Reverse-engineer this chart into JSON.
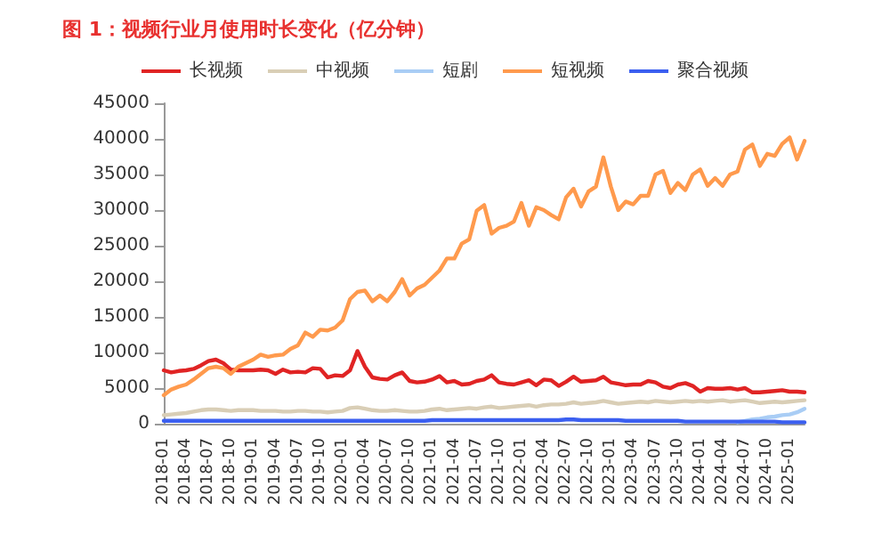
{
  "chart_data": {
    "type": "line",
    "title": "图 1：视频行业月使用时长变化（亿分钟）",
    "categories": [
      "2018-01",
      null,
      null,
      "2018-04",
      null,
      null,
      "2018-07",
      null,
      null,
      "2018-10",
      null,
      null,
      "2019-01",
      null,
      null,
      "2019-04",
      null,
      null,
      "2019-07",
      null,
      null,
      "2019-10",
      null,
      null,
      "2020-01",
      null,
      null,
      "2020-04",
      null,
      null,
      "2020-07",
      null,
      null,
      "2020-10",
      null,
      null,
      "2021-01",
      null,
      null,
      "2021-04",
      null,
      null,
      "2021-07",
      null,
      null,
      "2021-10",
      null,
      null,
      "2022-01",
      null,
      null,
      "2022-04",
      null,
      null,
      "2022-07",
      null,
      null,
      "2022-10",
      null,
      null,
      "2023-01",
      null,
      null,
      "2023-04",
      null,
      null,
      "2023-07",
      null,
      null,
      "2023-10",
      null,
      null,
      "2024-01",
      null,
      null,
      "2024-04",
      null,
      null,
      "2024-07",
      null,
      null,
      "2024-10",
      null,
      null,
      "2025-01",
      null,
      null
    ],
    "series": [
      {
        "name": "长视频",
        "color": "#e02424",
        "values": [
          7500,
          7200,
          7400,
          7500,
          7700,
          8200,
          8800,
          9000,
          8500,
          7600,
          7500,
          7500,
          7500,
          7600,
          7500,
          7000,
          7600,
          7200,
          7300,
          7200,
          7800,
          7700,
          6500,
          6800,
          6700,
          7500,
          10200,
          8000,
          6500,
          6300,
          6200,
          6800,
          7200,
          6000,
          5800,
          5900,
          6200,
          6700,
          5800,
          6000,
          5500,
          5600,
          6000,
          6200,
          6800,
          5800,
          5600,
          5500,
          5800,
          6100,
          5400,
          6200,
          6100,
          5300,
          5900,
          6600,
          5900,
          6000,
          6100,
          6600,
          5800,
          5600,
          5400,
          5500,
          5500,
          6000,
          5800,
          5200,
          5000,
          5500,
          5700,
          5300,
          4500,
          5000,
          4900,
          4900,
          5000,
          4800,
          5000,
          4400,
          4400,
          4500,
          4600,
          4700,
          4500,
          4500,
          4400
        ]
      },
      {
        "name": "中视频",
        "color": "#d9ceb6",
        "values": [
          1200,
          1300,
          1400,
          1500,
          1700,
          1900,
          2000,
          2000,
          1900,
          1800,
          1900,
          1900,
          1900,
          1800,
          1800,
          1800,
          1700,
          1700,
          1800,
          1800,
          1700,
          1700,
          1600,
          1700,
          1800,
          2200,
          2300,
          2100,
          1900,
          1800,
          1800,
          1900,
          1800,
          1700,
          1700,
          1800,
          2000,
          2100,
          1900,
          2000,
          2100,
          2200,
          2100,
          2300,
          2400,
          2200,
          2300,
          2400,
          2500,
          2600,
          2400,
          2600,
          2700,
          2700,
          2800,
          3000,
          2800,
          2900,
          3000,
          3200,
          3000,
          2800,
          2900,
          3000,
          3100,
          3000,
          3200,
          3100,
          3000,
          3100,
          3200,
          3100,
          3200,
          3100,
          3200,
          3300,
          3100,
          3200,
          3300,
          3100,
          2900,
          3000,
          3100,
          3000,
          3100,
          3200,
          3300
        ]
      },
      {
        "name": "短剧",
        "color": "#a9cdf5",
        "values": [
          null,
          null,
          null,
          null,
          null,
          null,
          null,
          null,
          null,
          null,
          null,
          null,
          null,
          null,
          null,
          null,
          null,
          null,
          null,
          null,
          null,
          null,
          null,
          null,
          null,
          null,
          null,
          null,
          null,
          null,
          null,
          null,
          null,
          null,
          null,
          null,
          null,
          null,
          null,
          null,
          null,
          null,
          null,
          null,
          null,
          null,
          null,
          null,
          null,
          null,
          null,
          null,
          null,
          null,
          null,
          null,
          null,
          null,
          null,
          null,
          null,
          null,
          null,
          null,
          null,
          null,
          null,
          null,
          null,
          null,
          null,
          null,
          null,
          null,
          null,
          null,
          null,
          200,
          400,
          600,
          700,
          900,
          1000,
          1200,
          1300,
          1600,
          2100
        ]
      },
      {
        "name": "短视频",
        "color": "#ff9a4d",
        "values": [
          4000,
          4800,
          5200,
          5500,
          6200,
          7000,
          7800,
          8000,
          7800,
          7000,
          8000,
          8500,
          9000,
          9700,
          9400,
          9600,
          9700,
          10500,
          11000,
          12800,
          12200,
          13200,
          13100,
          13500,
          14500,
          17500,
          18500,
          18700,
          17200,
          18000,
          17200,
          18500,
          20300,
          18000,
          19000,
          19500,
          20500,
          21500,
          23200,
          23200,
          25300,
          25900,
          29900,
          30700,
          26700,
          27500,
          27800,
          28400,
          31000,
          27800,
          30400,
          30000,
          29300,
          28700,
          31800,
          33000,
          30500,
          32600,
          33300,
          37400,
          33300,
          30000,
          31200,
          30800,
          32000,
          32000,
          35000,
          35500,
          32400,
          33800,
          32800,
          35000,
          35700,
          33400,
          34500,
          33400,
          35000,
          35400,
          38500,
          39200,
          36200,
          37900,
          37600,
          39300,
          40200,
          37100,
          39700
        ]
      },
      {
        "name": "聚合视频",
        "color": "#3b5ff0",
        "values": [
          400,
          400,
          400,
          400,
          400,
          400,
          400,
          400,
          400,
          400,
          400,
          400,
          400,
          400,
          400,
          400,
          400,
          400,
          400,
          400,
          400,
          400,
          400,
          400,
          400,
          400,
          400,
          400,
          400,
          400,
          400,
          400,
          400,
          400,
          400,
          400,
          500,
          500,
          500,
          500,
          500,
          500,
          500,
          500,
          500,
          500,
          500,
          500,
          500,
          500,
          500,
          500,
          500,
          500,
          600,
          600,
          500,
          500,
          500,
          500,
          500,
          500,
          400,
          400,
          400,
          400,
          400,
          400,
          400,
          400,
          300,
          300,
          300,
          300,
          300,
          300,
          300,
          300,
          300,
          300,
          300,
          300,
          300,
          200,
          200,
          200,
          200
        ]
      }
    ],
    "ylim": [
      0,
      45000
    ],
    "yticks": [
      0,
      5000,
      10000,
      15000,
      20000,
      25000,
      30000,
      35000,
      40000,
      45000
    ],
    "legend": "top",
    "marker": "none",
    "line_style": "solid"
  }
}
